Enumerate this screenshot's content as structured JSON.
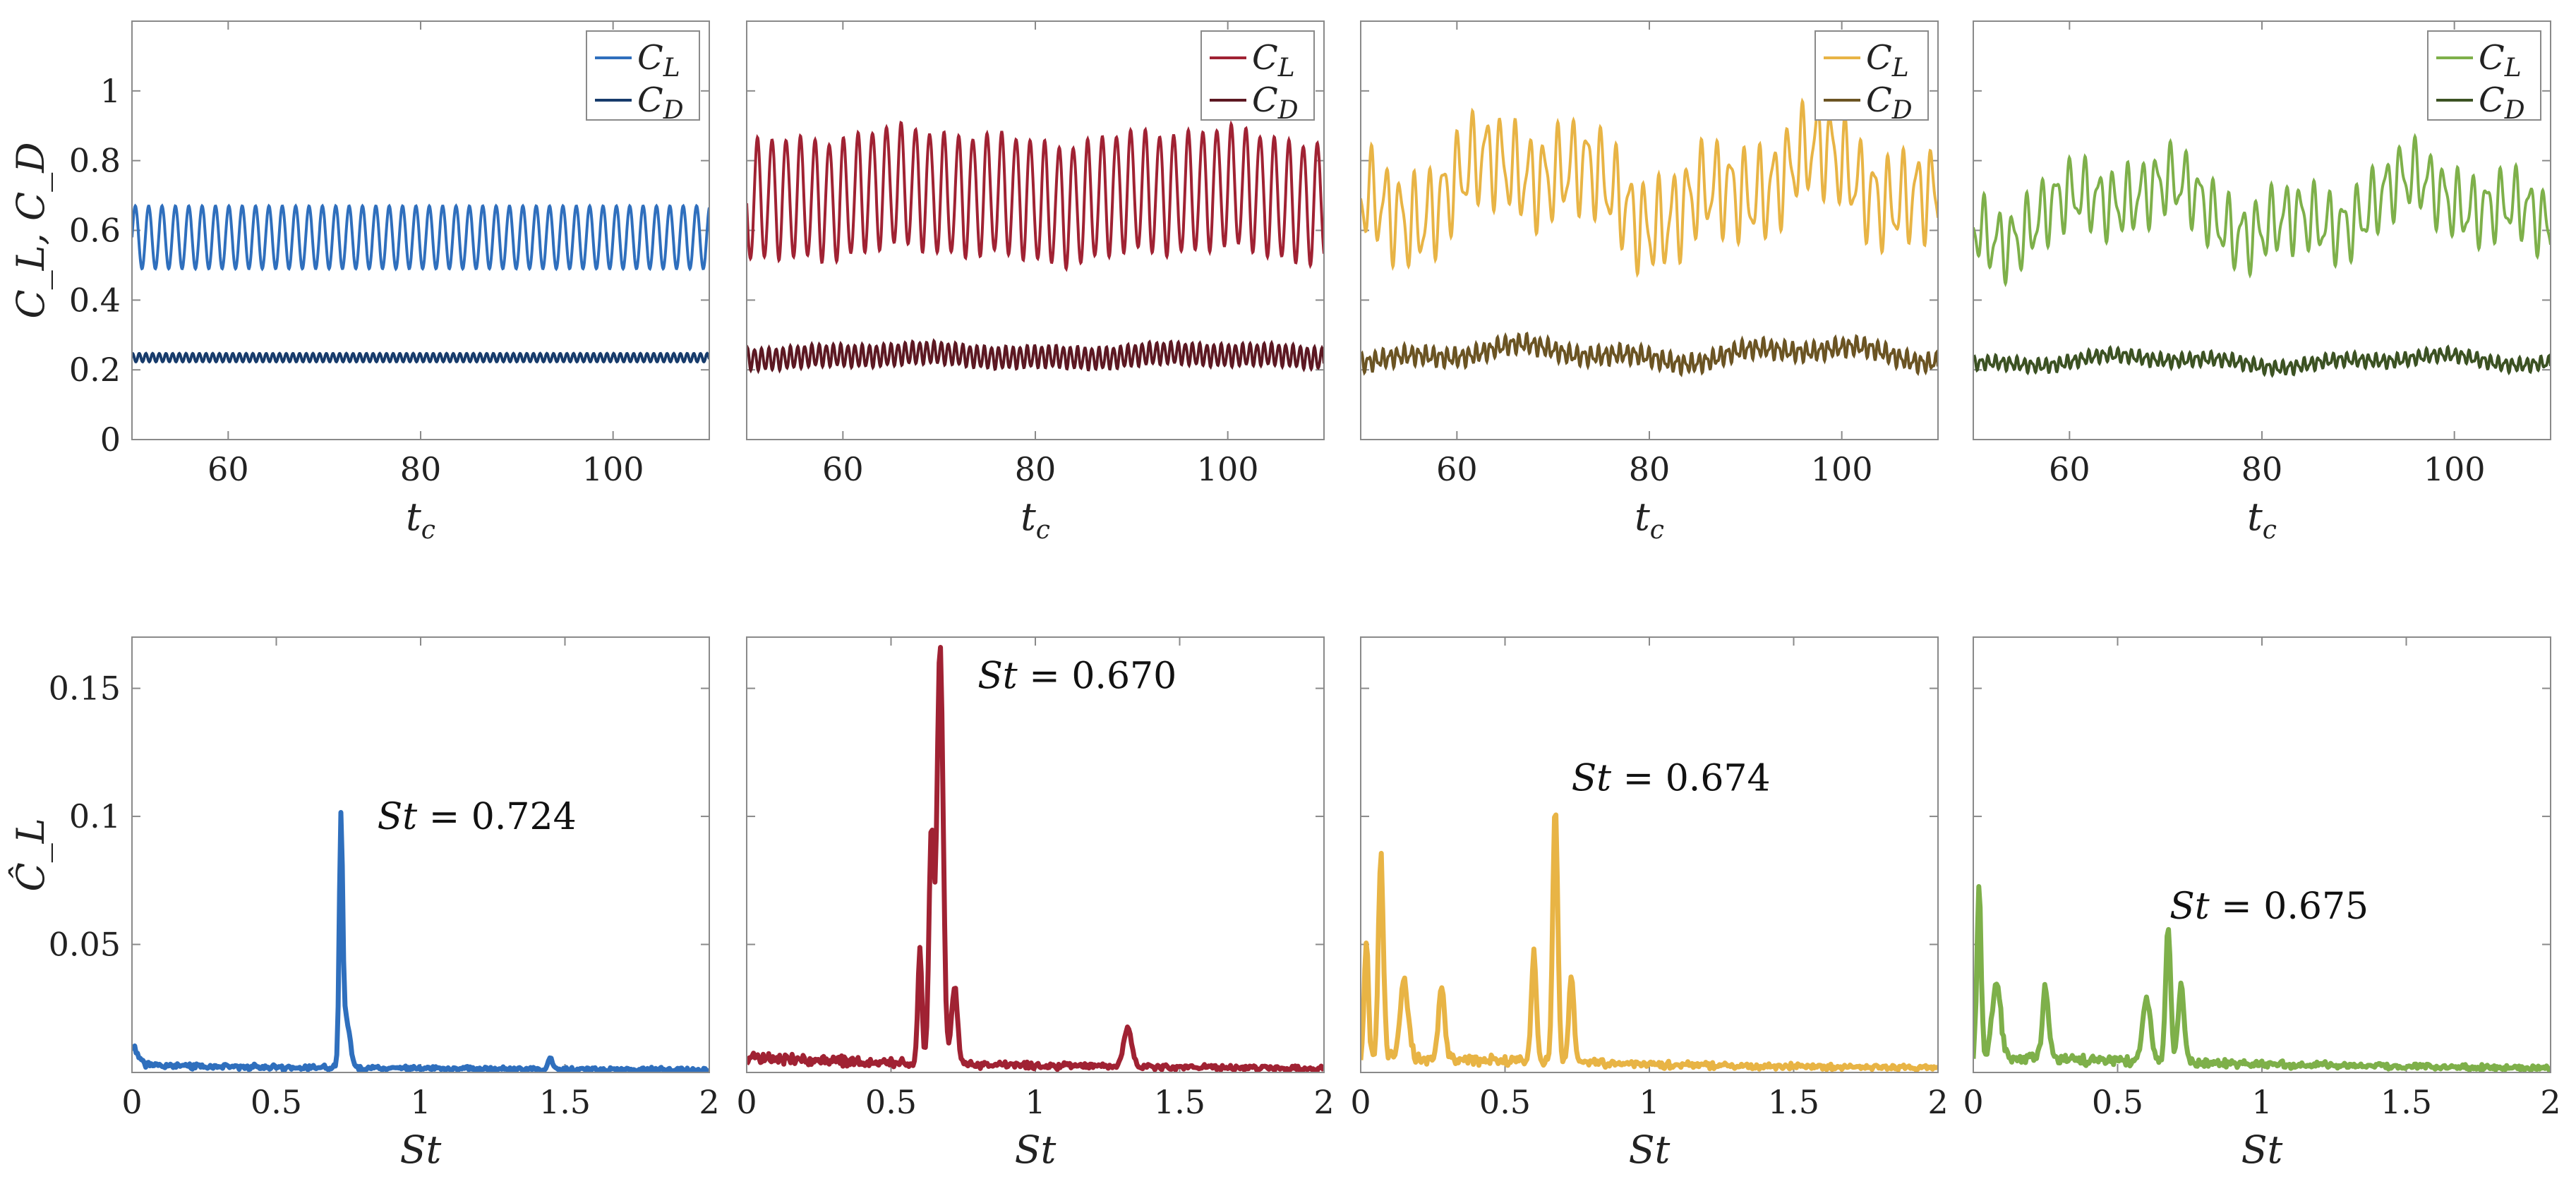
{
  "chart_data": [
    {
      "type": "line",
      "row": "time",
      "panel": 1,
      "color_cl": "#2f6fbd",
      "color_cd": "#173b6b",
      "xlabel": "t",
      "xlabel_sub": "c",
      "ylabel": "C_L, C_D",
      "xlim": [
        50,
        110
      ],
      "ylim": [
        0,
        1.2
      ],
      "xticks": [
        "60",
        "80",
        "100"
      ],
      "yticks": [
        "0",
        "0.2",
        "0.4",
        "0.6",
        "0.8",
        "1"
      ],
      "legend": [
        {
          "name": "C",
          "sub": "L"
        },
        {
          "name": "C",
          "sub": "D"
        }
      ],
      "series": [
        {
          "name": "C_L",
          "mean": 0.58,
          "amp": 0.09,
          "freq": 0.72,
          "noise": 0
        },
        {
          "name": "C_D",
          "mean": 0.235,
          "amp": 0.012,
          "freq": 1.44,
          "noise": 0
        }
      ]
    },
    {
      "type": "line",
      "row": "time",
      "panel": 2,
      "color_cl": "#a02233",
      "color_cd": "#5c1822",
      "xlabel": "t",
      "xlabel_sub": "c",
      "xlim": [
        50,
        110
      ],
      "ylim": [
        0,
        1.2
      ],
      "xticks": [
        "60",
        "80",
        "100"
      ],
      "legend": [
        {
          "name": "C",
          "sub": "L"
        },
        {
          "name": "C",
          "sub": "D"
        }
      ],
      "series": [
        {
          "name": "C_L",
          "mean": 0.7,
          "amp": 0.17,
          "freq": 0.67,
          "noise": 0.03
        },
        {
          "name": "C_D",
          "mean": 0.24,
          "amp": 0.03,
          "freq": 1.34,
          "noise": 0.01
        }
      ]
    },
    {
      "type": "line",
      "row": "time",
      "panel": 3,
      "color_cl": "#e8b445",
      "color_cd": "#6b5423",
      "xlabel": "t",
      "xlabel_sub": "c",
      "xlim": [
        50,
        110
      ],
      "ylim": [
        0,
        1.2
      ],
      "xticks": [
        "60",
        "80",
        "100"
      ],
      "legend": [
        {
          "name": "C",
          "sub": "L"
        },
        {
          "name": "C",
          "sub": "D"
        }
      ],
      "series": [
        {
          "name": "C_L",
          "mean": 0.72,
          "amp": 0.11,
          "freq": 0.67,
          "noise": 0.12
        },
        {
          "name": "C_D",
          "mean": 0.245,
          "amp": 0.02,
          "freq": 1.34,
          "noise": 0.03
        }
      ]
    },
    {
      "type": "line",
      "row": "time",
      "panel": 4,
      "color_cl": "#7eb04a",
      "color_cd": "#3c5223",
      "xlabel": "t",
      "xlabel_sub": "c",
      "xlim": [
        50,
        110
      ],
      "ylim": [
        0,
        1.2
      ],
      "xticks": [
        "60",
        "80",
        "100"
      ],
      "legend": [
        {
          "name": "C",
          "sub": "L"
        },
        {
          "name": "C",
          "sub": "D"
        }
      ],
      "series": [
        {
          "name": "C_L",
          "mean": 0.66,
          "amp": 0.08,
          "freq": 0.67,
          "noise": 0.1
        },
        {
          "name": "C_D",
          "mean": 0.225,
          "amp": 0.015,
          "freq": 1.34,
          "noise": 0.02
        }
      ]
    },
    {
      "type": "line",
      "row": "spectrum",
      "panel": 1,
      "color": "#2f6fbd",
      "xlabel": "St",
      "ylabel": "Ĉ_L",
      "xlim": [
        0,
        2
      ],
      "ylim": [
        0,
        0.17
      ],
      "xticks": [
        "0",
        "0.5",
        "1",
        "1.5",
        "2"
      ],
      "yticks": [
        "0.05",
        "0.1",
        "0.15"
      ],
      "annotation": {
        "prefix": "St",
        "text": " = 0.724",
        "x": 0.85,
        "y": 0.1
      },
      "peaks": [
        {
          "st": 0.0,
          "amp": 0.007,
          "w": 0.03
        },
        {
          "st": 0.724,
          "amp": 0.09,
          "w": 0.008
        },
        {
          "st": 0.74,
          "amp": 0.02,
          "w": 0.02
        },
        {
          "st": 1.45,
          "amp": 0.004,
          "w": 0.01
        }
      ],
      "floor": 0.002
    },
    {
      "type": "line",
      "row": "spectrum",
      "panel": 2,
      "color": "#a02233",
      "xlabel": "St",
      "xlim": [
        0,
        2
      ],
      "ylim": [
        0,
        0.17
      ],
      "xticks": [
        "0",
        "0.5",
        "1",
        "1.5",
        "2"
      ],
      "annotation": {
        "prefix": "St",
        "text": " = 0.670",
        "x": 0.8,
        "y": 0.155
      },
      "peaks": [
        {
          "st": 0.6,
          "amp": 0.045,
          "w": 0.01
        },
        {
          "st": 0.64,
          "amp": 0.09,
          "w": 0.012
        },
        {
          "st": 0.67,
          "amp": 0.163,
          "w": 0.015
        },
        {
          "st": 0.72,
          "amp": 0.03,
          "w": 0.015
        },
        {
          "st": 1.32,
          "amp": 0.015,
          "w": 0.02
        }
      ],
      "floor": 0.005
    },
    {
      "type": "line",
      "row": "spectrum",
      "panel": 3,
      "color": "#e8b445",
      "xlabel": "St",
      "xlim": [
        0,
        2
      ],
      "ylim": [
        0,
        0.17
      ],
      "xticks": [
        "0",
        "0.5",
        "1",
        "1.5",
        "2"
      ],
      "annotation": {
        "prefix": "St",
        "text": " = 0.674",
        "x": 0.73,
        "y": 0.115
      },
      "peaks": [
        {
          "st": 0.02,
          "amp": 0.043,
          "w": 0.01
        },
        {
          "st": 0.07,
          "amp": 0.078,
          "w": 0.012
        },
        {
          "st": 0.15,
          "amp": 0.03,
          "w": 0.02
        },
        {
          "st": 0.28,
          "amp": 0.028,
          "w": 0.015
        },
        {
          "st": 0.6,
          "amp": 0.043,
          "w": 0.012
        },
        {
          "st": 0.674,
          "amp": 0.1,
          "w": 0.012
        },
        {
          "st": 0.73,
          "amp": 0.035,
          "w": 0.012
        }
      ],
      "floor": 0.006
    },
    {
      "type": "line",
      "row": "spectrum",
      "panel": 4,
      "color": "#7eb04a",
      "xlabel": "St",
      "xlim": [
        0,
        2
      ],
      "ylim": [
        0,
        0.17
      ],
      "xticks": [
        "0",
        "0.5",
        "1",
        "1.5",
        "2"
      ],
      "annotation": {
        "prefix": "St",
        "text": " = 0.675",
        "x": 0.68,
        "y": 0.065
      },
      "peaks": [
        {
          "st": 0.02,
          "amp": 0.065,
          "w": 0.01
        },
        {
          "st": 0.08,
          "amp": 0.03,
          "w": 0.02
        },
        {
          "st": 0.25,
          "amp": 0.028,
          "w": 0.015
        },
        {
          "st": 0.6,
          "amp": 0.025,
          "w": 0.02
        },
        {
          "st": 0.675,
          "amp": 0.053,
          "w": 0.012
        },
        {
          "st": 0.72,
          "amp": 0.03,
          "w": 0.015
        }
      ],
      "floor": 0.006
    }
  ]
}
